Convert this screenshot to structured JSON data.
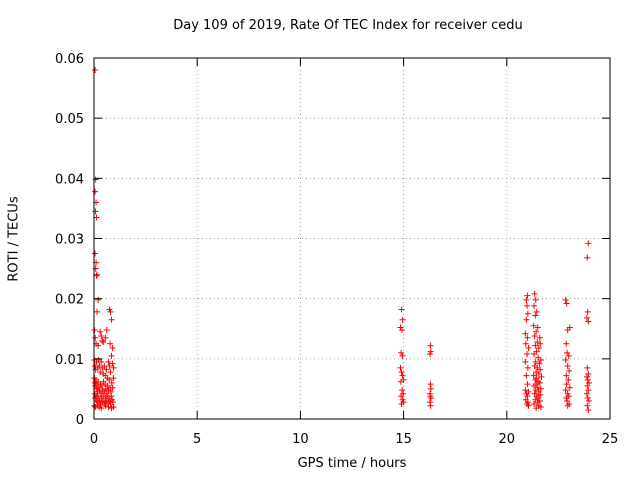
{
  "chart_data": {
    "type": "scatter",
    "title": "Day 109 of 2019, Rate Of TEC Index for receiver cedu",
    "xlabel": "GPS time / hours",
    "ylabel": "ROTI / TECUs",
    "xlim": [
      0,
      25
    ],
    "ylim": [
      0,
      0.06
    ],
    "xticks": [
      "0",
      "5",
      "10",
      "15",
      "20",
      "25"
    ],
    "yticks": [
      "0",
      "0.01",
      "0.02",
      "0.03",
      "0.04",
      "0.05",
      "0.06"
    ],
    "grid": true,
    "marker": "+",
    "color": "#ff0000",
    "points": [
      [
        0.05,
        0.058
      ],
      [
        0.08,
        0.0398
      ],
      [
        0.05,
        0.0378
      ],
      [
        0.1,
        0.036
      ],
      [
        0.07,
        0.0345
      ],
      [
        0.12,
        0.0335
      ],
      [
        0.05,
        0.0275
      ],
      [
        0.1,
        0.026
      ],
      [
        0.08,
        0.025
      ],
      [
        0.15,
        0.024
      ],
      [
        0.12,
        0.0238
      ],
      [
        0.2,
        0.0198
      ],
      [
        0.15,
        0.0178
      ],
      [
        0.03,
        0.0148
      ],
      [
        0.06,
        0.0135
      ],
      [
        0.1,
        0.0125
      ],
      [
        0.2,
        0.0122
      ],
      [
        0.3,
        0.0145
      ],
      [
        0.35,
        0.0138
      ],
      [
        0.4,
        0.013
      ],
      [
        0.45,
        0.0128
      ],
      [
        0.55,
        0.0135
      ],
      [
        0.62,
        0.0148
      ],
      [
        0.75,
        0.0182
      ],
      [
        0.8,
        0.0178
      ],
      [
        0.85,
        0.0165
      ],
      [
        0.78,
        0.0125
      ],
      [
        0.9,
        0.0118
      ],
      [
        0.02,
        0.0098
      ],
      [
        0.05,
        0.0088
      ],
      [
        0.08,
        0.0082
      ],
      [
        0.12,
        0.0095
      ],
      [
        0.18,
        0.0085
      ],
      [
        0.22,
        0.0098
      ],
      [
        0.26,
        0.0088
      ],
      [
        0.3,
        0.0078
      ],
      [
        0.35,
        0.0095
      ],
      [
        0.4,
        0.0085
      ],
      [
        0.45,
        0.0075
      ],
      [
        0.5,
        0.0088
      ],
      [
        0.55,
        0.0072
      ],
      [
        0.6,
        0.0082
      ],
      [
        0.65,
        0.0068
      ],
      [
        0.7,
        0.0095
      ],
      [
        0.75,
        0.0088
      ],
      [
        0.8,
        0.0078
      ],
      [
        0.85,
        0.0105
      ],
      [
        0.9,
        0.0092
      ],
      [
        0.95,
        0.0085
      ],
      [
        0.02,
        0.0068
      ],
      [
        0.04,
        0.006
      ],
      [
        0.06,
        0.0055
      ],
      [
        0.09,
        0.0065
      ],
      [
        0.11,
        0.005
      ],
      [
        0.14,
        0.0058
      ],
      [
        0.17,
        0.0045
      ],
      [
        0.2,
        0.0062
      ],
      [
        0.23,
        0.0052
      ],
      [
        0.27,
        0.0048
      ],
      [
        0.31,
        0.0058
      ],
      [
        0.34,
        0.0042
      ],
      [
        0.38,
        0.0055
      ],
      [
        0.42,
        0.0048
      ],
      [
        0.46,
        0.0062
      ],
      [
        0.5,
        0.0045
      ],
      [
        0.54,
        0.0058
      ],
      [
        0.58,
        0.005
      ],
      [
        0.62,
        0.0042
      ],
      [
        0.66,
        0.0055
      ],
      [
        0.7,
        0.0048
      ],
      [
        0.74,
        0.0065
      ],
      [
        0.78,
        0.0052
      ],
      [
        0.82,
        0.0045
      ],
      [
        0.86,
        0.006
      ],
      [
        0.9,
        0.0052
      ],
      [
        0.94,
        0.0068
      ],
      [
        0.03,
        0.0042
      ],
      [
        0.06,
        0.0035
      ],
      [
        0.1,
        0.0038
      ],
      [
        0.13,
        0.003
      ],
      [
        0.16,
        0.0038
      ],
      [
        0.19,
        0.0028
      ],
      [
        0.24,
        0.0035
      ],
      [
        0.28,
        0.003
      ],
      [
        0.32,
        0.0025
      ],
      [
        0.36,
        0.0035
      ],
      [
        0.4,
        0.0028
      ],
      [
        0.44,
        0.0038
      ],
      [
        0.48,
        0.003
      ],
      [
        0.52,
        0.0025
      ],
      [
        0.56,
        0.0035
      ],
      [
        0.6,
        0.003
      ],
      [
        0.64,
        0.0038
      ],
      [
        0.68,
        0.0028
      ],
      [
        0.72,
        0.0035
      ],
      [
        0.76,
        0.003
      ],
      [
        0.8,
        0.0025
      ],
      [
        0.84,
        0.0038
      ],
      [
        0.88,
        0.0032
      ],
      [
        0.92,
        0.0028
      ],
      [
        0.02,
        0.0022
      ],
      [
        0.07,
        0.002
      ],
      [
        0.15,
        0.0022
      ],
      [
        0.25,
        0.002
      ],
      [
        0.35,
        0.0018
      ],
      [
        0.55,
        0.0022
      ],
      [
        0.7,
        0.002
      ],
      [
        0.85,
        0.0018
      ],
      [
        0.95,
        0.002
      ],
      [
        14.9,
        0.0182
      ],
      [
        14.95,
        0.0165
      ],
      [
        14.85,
        0.0152
      ],
      [
        14.92,
        0.0148
      ],
      [
        14.88,
        0.011
      ],
      [
        14.95,
        0.0105
      ],
      [
        14.85,
        0.0085
      ],
      [
        14.9,
        0.0078
      ],
      [
        14.95,
        0.0072
      ],
      [
        15.0,
        0.0065
      ],
      [
        14.87,
        0.0062
      ],
      [
        14.93,
        0.0048
      ],
      [
        14.98,
        0.0042
      ],
      [
        14.88,
        0.0038
      ],
      [
        14.95,
        0.0032
      ],
      [
        15.0,
        0.0028
      ],
      [
        14.9,
        0.0025
      ],
      [
        16.3,
        0.0122
      ],
      [
        16.32,
        0.0112
      ],
      [
        16.28,
        0.0108
      ],
      [
        16.3,
        0.0058
      ],
      [
        16.32,
        0.005
      ],
      [
        16.28,
        0.0042
      ],
      [
        16.3,
        0.0038
      ],
      [
        16.32,
        0.0035
      ],
      [
        16.28,
        0.0028
      ],
      [
        16.3,
        0.0022
      ],
      [
        20.95,
        0.0198
      ],
      [
        21.0,
        0.0205
      ],
      [
        20.98,
        0.0188
      ],
      [
        21.02,
        0.0175
      ],
      [
        20.95,
        0.0165
      ],
      [
        20.9,
        0.0142
      ],
      [
        21.0,
        0.0135
      ],
      [
        20.92,
        0.0125
      ],
      [
        21.05,
        0.0118
      ],
      [
        20.98,
        0.0108
      ],
      [
        20.9,
        0.0095
      ],
      [
        21.02,
        0.0085
      ],
      [
        20.95,
        0.0072
      ],
      [
        21.0,
        0.0058
      ],
      [
        20.9,
        0.0048
      ],
      [
        21.05,
        0.0045
      ],
      [
        20.95,
        0.0042
      ],
      [
        21.0,
        0.0038
      ],
      [
        20.92,
        0.0032
      ],
      [
        21.02,
        0.0028
      ],
      [
        20.98,
        0.0025
      ],
      [
        21.05,
        0.0022
      ],
      [
        21.35,
        0.0208
      ],
      [
        21.4,
        0.0198
      ],
      [
        21.32,
        0.0188
      ],
      [
        21.45,
        0.0178
      ],
      [
        21.38,
        0.0172
      ],
      [
        21.3,
        0.0155
      ],
      [
        21.5,
        0.0152
      ],
      [
        21.42,
        0.0145
      ],
      [
        21.35,
        0.0138
      ],
      [
        21.6,
        0.0135
      ],
      [
        21.48,
        0.0128
      ],
      [
        21.38,
        0.0122
      ],
      [
        21.55,
        0.0118
      ],
      [
        21.62,
        0.0125
      ],
      [
        21.45,
        0.0112
      ],
      [
        21.32,
        0.0108
      ],
      [
        21.52,
        0.0102
      ],
      [
        21.65,
        0.0098
      ],
      [
        21.4,
        0.0095
      ],
      [
        21.58,
        0.0092
      ],
      [
        21.35,
        0.0088
      ],
      [
        21.48,
        0.0085
      ],
      [
        21.62,
        0.0082
      ],
      [
        21.42,
        0.0078
      ],
      [
        21.55,
        0.0075
      ],
      [
        21.3,
        0.0072
      ],
      [
        21.68,
        0.007
      ],
      [
        21.45,
        0.0068
      ],
      [
        21.38,
        0.0065
      ],
      [
        21.52,
        0.0062
      ],
      [
        21.6,
        0.006
      ],
      [
        21.42,
        0.0058
      ],
      [
        21.32,
        0.0055
      ],
      [
        21.5,
        0.0052
      ],
      [
        21.65,
        0.005
      ],
      [
        21.4,
        0.0048
      ],
      [
        21.55,
        0.0045
      ],
      [
        21.35,
        0.0042
      ],
      [
        21.62,
        0.004
      ],
      [
        21.45,
        0.0038
      ],
      [
        21.52,
        0.0035
      ],
      [
        21.38,
        0.0032
      ],
      [
        21.6,
        0.003
      ],
      [
        21.48,
        0.0028
      ],
      [
        21.32,
        0.0025
      ],
      [
        21.55,
        0.0022
      ],
      [
        21.65,
        0.002
      ],
      [
        21.42,
        0.0018
      ],
      [
        22.85,
        0.0198
      ],
      [
        22.9,
        0.0192
      ],
      [
        22.95,
        0.0148
      ],
      [
        23.05,
        0.0152
      ],
      [
        22.88,
        0.0125
      ],
      [
        22.92,
        0.011
      ],
      [
        23.0,
        0.0105
      ],
      [
        22.85,
        0.0098
      ],
      [
        22.95,
        0.0088
      ],
      [
        23.02,
        0.008
      ],
      [
        22.88,
        0.0072
      ],
      [
        22.98,
        0.0065
      ],
      [
        22.9,
        0.0058
      ],
      [
        23.05,
        0.0052
      ],
      [
        22.85,
        0.0048
      ],
      [
        22.95,
        0.0042
      ],
      [
        23.0,
        0.0038
      ],
      [
        22.88,
        0.0035
      ],
      [
        22.92,
        0.003
      ],
      [
        23.02,
        0.0025
      ],
      [
        22.95,
        0.0022
      ],
      [
        23.95,
        0.0292
      ],
      [
        23.9,
        0.0268
      ],
      [
        23.92,
        0.0178
      ],
      [
        23.88,
        0.0168
      ],
      [
        23.95,
        0.0162
      ],
      [
        23.9,
        0.0085
      ],
      [
        23.95,
        0.0075
      ],
      [
        23.88,
        0.007
      ],
      [
        23.92,
        0.0065
      ],
      [
        23.98,
        0.006
      ],
      [
        23.9,
        0.0055
      ],
      [
        23.95,
        0.0048
      ],
      [
        23.88,
        0.0042
      ],
      [
        23.92,
        0.0035
      ],
      [
        23.98,
        0.003
      ],
      [
        23.9,
        0.0022
      ],
      [
        23.95,
        0.0015
      ]
    ]
  }
}
